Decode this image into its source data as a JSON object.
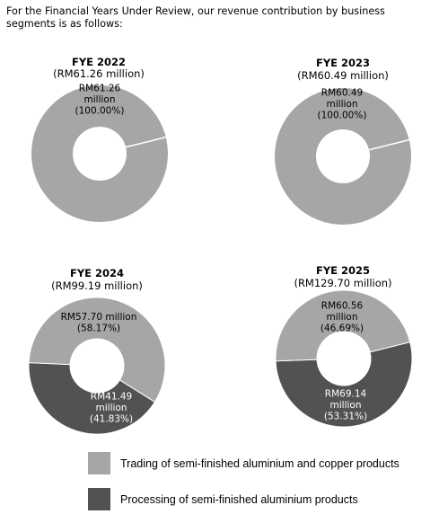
{
  "intro_text": "For the Financial Years Under Review, our revenue contribution by business segments is as follows:",
  "colors": {
    "trading": "#a6a6a6",
    "processing": "#525252",
    "divider": "#ffffff"
  },
  "legend": [
    {
      "name": "Trading of semi-finished aluminium and copper products",
      "color": "#a6a6a6"
    },
    {
      "name": "Processing of semi-finished aluminium products",
      "color": "#525252"
    }
  ],
  "chart_data": [
    {
      "type": "pie",
      "title": "FYE 2022",
      "subtitle": "(RM61.26 million)",
      "slices": [
        {
          "segment": "Trading of semi-finished aluminium and copper products",
          "value": 61.26,
          "percent": 100.0,
          "label_lines": [
            "RM61.26",
            "million",
            "(100.00%)"
          ]
        }
      ]
    },
    {
      "type": "pie",
      "title": "FYE 2023",
      "subtitle": "(RM60.49 million)",
      "slices": [
        {
          "segment": "Trading of semi-finished aluminium and copper products",
          "value": 60.49,
          "percent": 100.0,
          "label_lines": [
            "RM60.49",
            "million",
            "(100.00%)"
          ]
        }
      ]
    },
    {
      "type": "pie",
      "title": "FYE 2024",
      "subtitle": "(RM99.19 million)",
      "slices": [
        {
          "segment": "Trading of semi-finished aluminium and copper products",
          "value": 57.7,
          "percent": 58.17,
          "label_lines": [
            "RM57.70 million",
            "(58.17%)"
          ]
        },
        {
          "segment": "Processing of semi-finished aluminium products",
          "value": 41.49,
          "percent": 41.83,
          "label_lines": [
            "RM41.49",
            "million",
            "(41.83%)"
          ]
        }
      ]
    },
    {
      "type": "pie",
      "title": "FYE 2025",
      "subtitle": "(RM129.70 million)",
      "slices": [
        {
          "segment": "Trading of semi-finished aluminium and copper products",
          "value": 60.56,
          "percent": 46.69,
          "label_lines": [
            "RM60.56",
            "million",
            "(46.69%)"
          ]
        },
        {
          "segment": "Processing of semi-finished aluminium products",
          "value": 69.14,
          "percent": 53.31,
          "label_lines": [
            "RM69.14",
            "million",
            "(53.31%)"
          ]
        }
      ]
    }
  ]
}
